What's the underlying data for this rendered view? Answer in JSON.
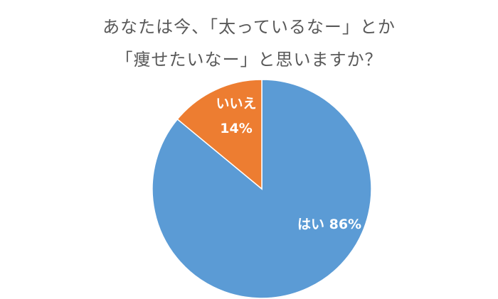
{
  "chart_data": {
    "type": "pie",
    "title_lines": [
      "あなたは今、「太っているなー」とか",
      "「痩せたいなー」と思いますか？"
    ],
    "slices": [
      {
        "label": "はい",
        "value": 86,
        "value_label": "86%",
        "color": "#5B9BD5"
      },
      {
        "label": "いいえ",
        "value": 14,
        "value_label": "14%",
        "color": "#ED7D31"
      }
    ],
    "legend": "none"
  }
}
